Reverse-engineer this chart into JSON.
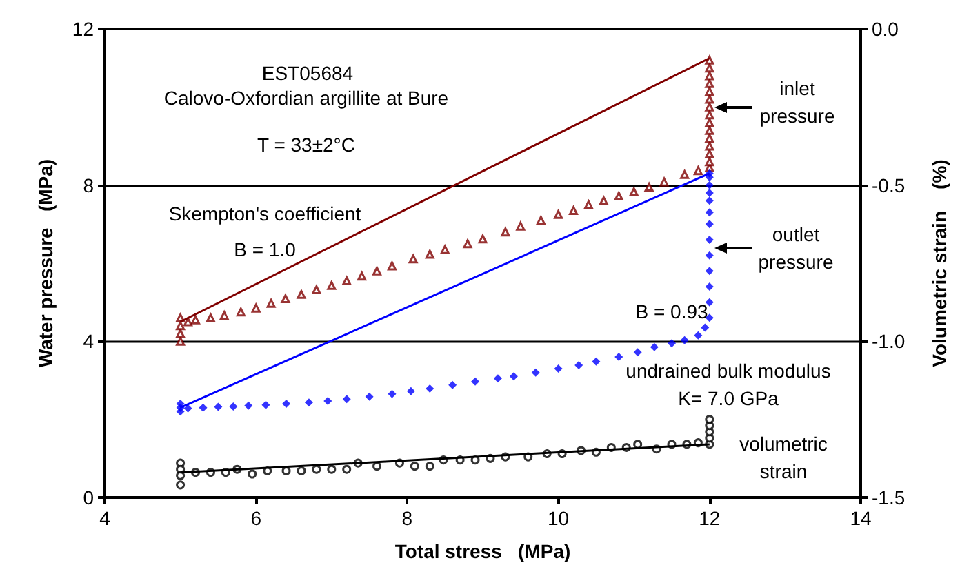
{
  "chart_data": {
    "type": "scatter",
    "xlabel": "Total stress   (MPa)",
    "ylabel": "Water pressure   (MPa)",
    "y2label": "Volumetric strain    (%)",
    "xlim": [
      4,
      14
    ],
    "xticks": [
      4,
      6,
      8,
      10,
      12,
      14
    ],
    "ylim": [
      0,
      12
    ],
    "yticks": [
      0,
      4,
      8,
      12
    ],
    "y2lim": [
      -1.5,
      0
    ],
    "y2ticks": [
      {
        "value": -1.5,
        "label": "-1.5"
      },
      {
        "value": -1,
        "label": "-1.0"
      },
      {
        "value": -0.5,
        "label": "-0.5"
      },
      {
        "value": 0,
        "label": "0.0"
      }
    ],
    "grid": "y",
    "annotations": [
      "EST05684",
      "Calovo-Oxfordian argillite at Bure",
      "T = 33±2°C",
      "Skempton's coefficient",
      "B = 1.0",
      "B = 0.93",
      "undrained bulk modulus",
      "K= 7.0 GPa"
    ],
    "series": [
      {
        "name": "inlet pressure",
        "type": "scatter",
        "marker": "triangle",
        "color": "#800000",
        "x": [
          5,
          5,
          5,
          5,
          5.1,
          5.2,
          5.4,
          5.58,
          5.8,
          6.0,
          6.2,
          6.39,
          6.6,
          6.8,
          7.0,
          7.2,
          7.4,
          7.6,
          7.8,
          8.08,
          8.3,
          8.5,
          8.8,
          9.0,
          9.3,
          9.5,
          9.77,
          10.0,
          10.2,
          10.4,
          10.6,
          10.8,
          11.0,
          11.2,
          11.4,
          11.67,
          11.85,
          12,
          12,
          12,
          12,
          12,
          12,
          12,
          12,
          12,
          12,
          12,
          12,
          12,
          12,
          12
        ],
        "values": [
          4.0,
          4.2,
          4.4,
          4.6,
          4.5,
          4.55,
          4.6,
          4.66,
          4.75,
          4.85,
          4.97,
          5.09,
          5.2,
          5.32,
          5.43,
          5.55,
          5.67,
          5.8,
          5.93,
          6.11,
          6.23,
          6.35,
          6.5,
          6.62,
          6.8,
          6.95,
          7.1,
          7.25,
          7.35,
          7.5,
          7.6,
          7.72,
          7.83,
          7.95,
          8.08,
          8.27,
          8.37,
          8.45,
          8.6,
          8.8,
          9.0,
          9.2,
          9.4,
          9.6,
          9.8,
          10.0,
          10.2,
          10.4,
          10.6,
          10.8,
          11.0,
          11.2
        ]
      },
      {
        "type": "line",
        "marker": "none",
        "color": "#800000",
        "x": [
          5,
          12
        ],
        "values": [
          4.5,
          11.25
        ]
      },
      {
        "name": "outlet pressure",
        "type": "scatter",
        "marker": "diamond",
        "color": "#0000ff",
        "x": [
          5,
          5,
          5,
          5.1,
          5.3,
          5.5,
          5.7,
          5.9,
          6.13,
          6.4,
          6.7,
          6.95,
          7.2,
          7.5,
          7.8,
          8.05,
          8.3,
          8.6,
          8.9,
          9.2,
          9.41,
          9.7,
          10.0,
          10.27,
          10.5,
          10.8,
          11.05,
          11.27,
          11.5,
          11.67,
          11.85,
          11.94,
          12,
          12,
          12,
          12,
          12,
          12,
          12,
          12,
          12,
          12,
          12,
          12,
          12
        ],
        "values": [
          2.2,
          2.3,
          2.4,
          2.28,
          2.3,
          2.32,
          2.33,
          2.35,
          2.37,
          2.4,
          2.43,
          2.47,
          2.52,
          2.58,
          2.65,
          2.72,
          2.79,
          2.88,
          2.97,
          3.05,
          3.1,
          3.2,
          3.3,
          3.39,
          3.48,
          3.6,
          3.72,
          3.85,
          3.95,
          4.03,
          4.15,
          4.35,
          4.6,
          5.0,
          5.4,
          5.8,
          6.2,
          6.6,
          7.0,
          7.3,
          7.6,
          7.8,
          8.0,
          8.2,
          8.3
        ]
      },
      {
        "type": "line",
        "marker": "none",
        "color": "#0000ff",
        "x": [
          5,
          12
        ],
        "values": [
          2.3,
          8.3
        ]
      },
      {
        "name": "volumetric strain",
        "type": "scatter",
        "marker": "circle",
        "color": "#000000",
        "axis": "y2",
        "x": [
          5,
          5,
          5,
          5,
          5.2,
          5.4,
          5.6,
          5.75,
          5.95,
          6.15,
          6.4,
          6.6,
          6.8,
          7.0,
          7.2,
          7.35,
          7.6,
          7.9,
          8.1,
          8.3,
          8.48,
          8.7,
          8.9,
          9.1,
          9.3,
          9.6,
          9.85,
          10.05,
          10.3,
          10.5,
          10.7,
          10.9,
          11.05,
          11.3,
          11.5,
          11.7,
          11.85,
          12,
          12,
          12,
          12,
          12
        ],
        "values": [
          -1.39,
          -1.41,
          -1.43,
          -1.46,
          -1.42,
          -1.42,
          -1.42,
          -1.41,
          -1.425,
          -1.415,
          -1.415,
          -1.415,
          -1.41,
          -1.41,
          -1.41,
          -1.39,
          -1.4,
          -1.39,
          -1.4,
          -1.4,
          -1.38,
          -1.38,
          -1.38,
          -1.375,
          -1.37,
          -1.37,
          -1.36,
          -1.36,
          -1.35,
          -1.355,
          -1.34,
          -1.34,
          -1.33,
          -1.345,
          -1.33,
          -1.33,
          -1.325,
          -1.33,
          -1.31,
          -1.29,
          -1.27,
          -1.25
        ]
      },
      {
        "type": "line",
        "marker": "none",
        "color": "#000000",
        "axis": "y2",
        "x": [
          5,
          12
        ],
        "values": [
          -1.42,
          -1.33
        ]
      }
    ]
  }
}
